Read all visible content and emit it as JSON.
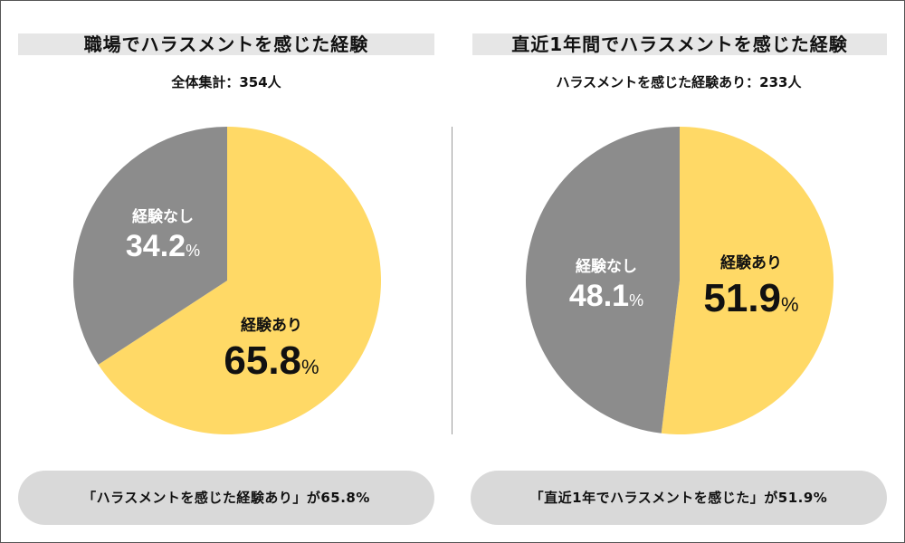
{
  "colors": {
    "yes": "#FFD966",
    "no": "#8C8C8C",
    "title_bg": "#E6E6E6",
    "pill_bg": "#D9D9D9"
  },
  "left": {
    "title": "職場でハラスメントを感じた経験",
    "subtitle": "全体集計：354人",
    "footer": "「ハラスメントを感じた経験あり」が65.8%"
  },
  "right": {
    "title": "直近1年間でハラスメントを感じた経験",
    "subtitle": "ハラスメントを感じた経験あり：233人",
    "footer": "「直近1年でハラスメントを感じた」が51.9%"
  },
  "chart_data": [
    {
      "type": "pie",
      "title": "職場でハラスメントを感じた経験",
      "slices": [
        {
          "label": "経験あり",
          "value": 65.8,
          "color": "#FFD966"
        },
        {
          "label": "経験なし",
          "value": 34.2,
          "color": "#8C8C8C"
        }
      ],
      "unit": "%"
    },
    {
      "type": "pie",
      "title": "直近1年間でハラスメントを感じた経験",
      "slices": [
        {
          "label": "経験あり",
          "value": 51.9,
          "color": "#FFD966"
        },
        {
          "label": "経験なし",
          "value": 48.1,
          "color": "#8C8C8C"
        }
      ],
      "unit": "%"
    }
  ]
}
